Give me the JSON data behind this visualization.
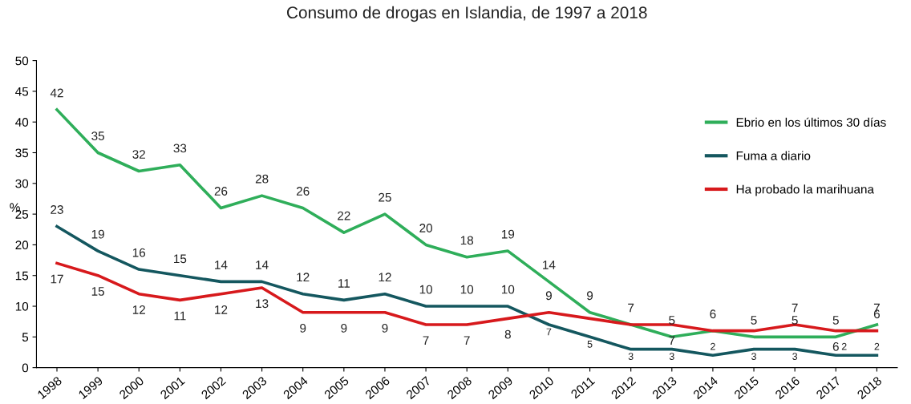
{
  "chart_data": {
    "type": "line",
    "title": "Consumo de drogas en Islandia, de 1997 a 2018",
    "ylabel": "%",
    "categories": [
      "1998",
      "1999",
      "2000",
      "2001",
      "2002",
      "2003",
      "2004",
      "2005",
      "2006",
      "2007",
      "2008",
      "2009",
      "2010",
      "2011",
      "2012",
      "2013",
      "2014",
      "2015",
      "2016",
      "2017",
      "2018"
    ],
    "series": [
      {
        "name": "Ebrio en los últimos 30 días",
        "color": "#2fae5a",
        "values": [
          42,
          35,
          32,
          33,
          26,
          28,
          26,
          22,
          25,
          20,
          18,
          19,
          14,
          9,
          7,
          5,
          6,
          5,
          5,
          5,
          7
        ],
        "value_labels": [
          "42",
          "35",
          "32",
          "33",
          "26",
          "28",
          "26",
          "22",
          "25",
          "20",
          "18",
          "19",
          "14",
          "9",
          "7",
          "5",
          null,
          "5",
          "5",
          "5",
          "7"
        ]
      },
      {
        "name": "Fuma a diario",
        "color": "#14575f",
        "values": [
          23,
          19,
          16,
          15,
          14,
          14,
          12,
          11,
          12,
          10,
          10,
          10,
          7,
          5,
          3,
          3,
          2,
          3,
          3,
          2,
          2
        ],
        "value_labels": [
          "23",
          "19",
          "16",
          "15",
          "14",
          "14",
          "12",
          "11",
          "12",
          "10",
          "10",
          "10",
          "7",
          "5",
          "3",
          "3",
          "2",
          "3",
          "3",
          "2",
          "2"
        ]
      },
      {
        "name": "Ha probado la marihuana",
        "color": "#d7191c",
        "values": [
          17,
          15,
          12,
          11,
          12,
          13,
          9,
          9,
          9,
          7,
          7,
          8,
          9,
          8,
          7,
          7,
          6,
          6,
          7,
          6,
          6
        ],
        "value_labels": [
          "17",
          "15",
          "12",
          "11",
          "12",
          "13",
          "9",
          "9",
          "9",
          "7",
          "7",
          "8",
          "9",
          null,
          null,
          "7",
          "6",
          null,
          "7",
          "6",
          "6"
        ]
      }
    ],
    "ylim": [
      0,
      50
    ],
    "yticks": [
      0,
      5,
      10,
      15,
      20,
      25,
      30,
      35,
      40,
      45,
      50
    ],
    "grid": false,
    "legend": "top right",
    "marker": "none",
    "line_style": "solid"
  }
}
